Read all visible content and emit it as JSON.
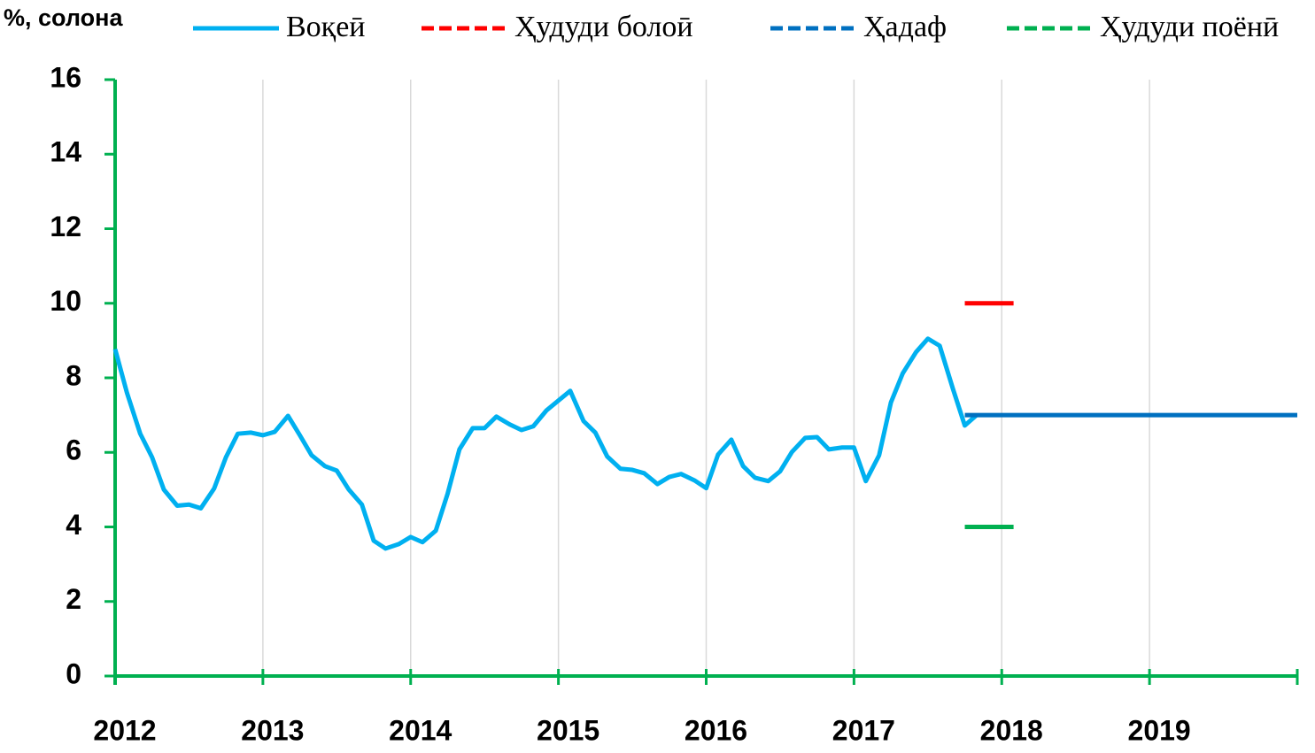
{
  "chart_data": {
    "type": "line",
    "title": "%, солона",
    "xlim": [
      2012,
      2020
    ],
    "ylim": [
      0,
      16
    ],
    "xticks": [
      2012,
      2013,
      2014,
      2015,
      2016,
      2017,
      2018,
      2019
    ],
    "yticks": [
      0,
      2,
      4,
      6,
      8,
      10,
      12,
      14,
      16
    ],
    "grid": "x",
    "axis_color": "#00b050",
    "series": [
      {
        "name": "Воқеӣ",
        "color": "#00b0f0",
        "dashed": false,
        "x": [
          2012,
          2012.08,
          2012.17,
          2012.25,
          2012.33,
          2012.42,
          2012.5,
          2012.58,
          2012.67,
          2012.75,
          2012.83,
          2012.92,
          2013,
          2013.08,
          2013.17,
          2013.25,
          2013.33,
          2013.42,
          2013.5,
          2013.58,
          2013.67,
          2013.75,
          2013.83,
          2013.92,
          2014,
          2014.08,
          2014.17,
          2014.25,
          2014.33,
          2014.42,
          2014.5,
          2014.58,
          2014.67,
          2014.75,
          2014.83,
          2014.92,
          2015,
          2015.08,
          2015.17,
          2015.25,
          2015.33,
          2015.42,
          2015.5,
          2015.58,
          2015.67,
          2015.75,
          2015.83,
          2015.92,
          2016,
          2016.08,
          2016.17,
          2016.25,
          2016.33,
          2016.42,
          2016.5,
          2016.58,
          2016.67,
          2016.75,
          2016.83,
          2016.92,
          2017,
          2017.08,
          2017.17,
          2017.25,
          2017.33,
          2017.42,
          2017.5,
          2017.58,
          2017.67,
          2017.75,
          2017.83
        ],
        "values": [
          8.77,
          7.6,
          6.5,
          5.87,
          5.0,
          4.57,
          4.6,
          4.5,
          5.03,
          5.87,
          6.5,
          6.53,
          6.46,
          6.55,
          6.98,
          6.46,
          5.92,
          5.63,
          5.51,
          5.01,
          4.6,
          3.63,
          3.42,
          3.54,
          3.73,
          3.59,
          3.9,
          4.89,
          6.08,
          6.65,
          6.65,
          6.96,
          6.75,
          6.6,
          6.7,
          7.13,
          7.39,
          7.65,
          6.84,
          6.53,
          5.89,
          5.56,
          5.53,
          5.44,
          5.15,
          5.34,
          5.42,
          5.25,
          5.04,
          5.94,
          6.34,
          5.63,
          5.32,
          5.23,
          5.49,
          6.01,
          6.39,
          6.41,
          6.08,
          6.13,
          6.13,
          5.23,
          5.92,
          7.34,
          8.12,
          8.69,
          9.05,
          8.86,
          7.7,
          6.72,
          7.0
        ]
      },
      {
        "name": "Ҳудуди болоӣ",
        "color": "#ff0000",
        "dashed": true,
        "x": [
          2017.75,
          2018.08
        ],
        "values": [
          10,
          10
        ]
      },
      {
        "name": "Ҳадаф",
        "color": "#0070c0",
        "dashed": true,
        "x": [
          2017.75,
          2020
        ],
        "values": [
          7,
          7
        ]
      },
      {
        "name": "Ҳудуди поёнӣ",
        "color": "#00b050",
        "dashed": true,
        "x": [
          2017.75,
          2018.08
        ],
        "values": [
          4,
          4
        ]
      }
    ]
  }
}
